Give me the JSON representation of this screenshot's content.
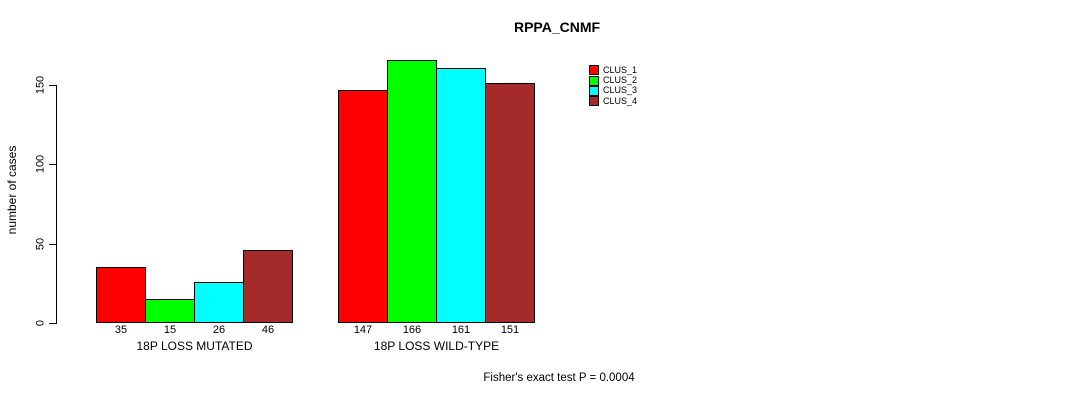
{
  "chart_data": {
    "type": "bar",
    "title": "RPPA_CNMF",
    "ylabel": "number of cases",
    "xlabel": "",
    "yticks": [
      0,
      50,
      100,
      150
    ],
    "ylim": [
      0,
      175
    ],
    "grid": false,
    "legend_position": "right-of-plot",
    "categories": [
      "18P LOSS MUTATED",
      "18P LOSS WILD-TYPE"
    ],
    "series": [
      {
        "name": "CLUS_1",
        "color": "#ff0000",
        "values": [
          35,
          147
        ]
      },
      {
        "name": "CLUS_2",
        "color": "#00ff00",
        "values": [
          15,
          166
        ]
      },
      {
        "name": "CLUS_3",
        "color": "#00ffff",
        "values": [
          26,
          161
        ]
      },
      {
        "name": "CLUS_4",
        "color": "#a52a2a",
        "values": [
          46,
          151
        ]
      }
    ],
    "annotation": "Fisher's exact test P = 0.0004",
    "colors": {
      "axis": "#000000",
      "background": "#ffffff",
      "bar_border": "#000000"
    }
  }
}
